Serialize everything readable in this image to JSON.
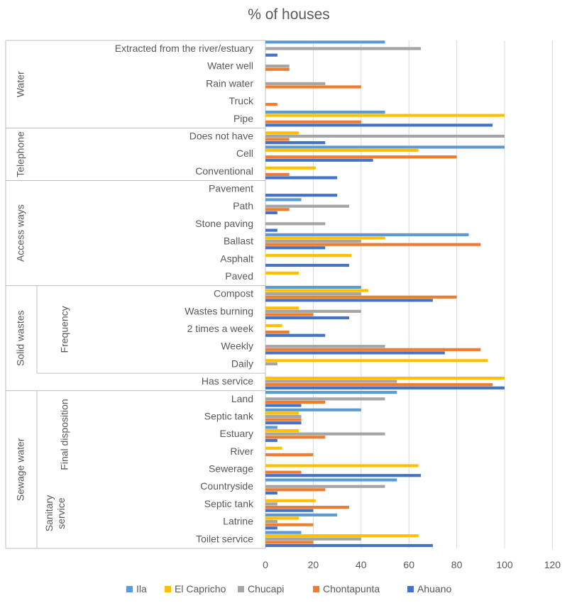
{
  "chart_data": {
    "type": "bar",
    "orientation": "horizontal",
    "title": "% of houses",
    "xlim": [
      0,
      120
    ],
    "x_ticks": [
      0,
      20,
      40,
      60,
      80,
      100,
      120
    ],
    "grid": true,
    "legend_position": "bottom",
    "series_names": [
      "Ila",
      "El Capricho",
      "Chucapi",
      "Chontapunta",
      "Ahuano"
    ],
    "colors": {
      "Ila": "#5b9bd5",
      "El Capricho": "#ffc000",
      "Chucapi": "#a5a5a5",
      "Chontapunta": "#ed7d31",
      "Ahuano": "#4472c4"
    },
    "categories": [
      {
        "label": "Extracted from the river/estuary",
        "values": [
          50,
          0,
          65,
          0,
          5
        ]
      },
      {
        "label": "Water well",
        "values": [
          0,
          0,
          10,
          10,
          0
        ]
      },
      {
        "label": "Rain water",
        "values": [
          0,
          0,
          25,
          40,
          0
        ]
      },
      {
        "label": "Truck",
        "values": [
          0,
          0,
          0,
          5,
          0
        ]
      },
      {
        "label": "Pipe",
        "values": [
          50,
          100,
          0,
          40,
          95
        ]
      },
      {
        "label": "Does not have",
        "values": [
          0,
          14,
          100,
          10,
          25
        ]
      },
      {
        "label": "Cell",
        "values": [
          100,
          64,
          0,
          80,
          45
        ]
      },
      {
        "label": "Conventional",
        "values": [
          0,
          21,
          0,
          10,
          30
        ]
      },
      {
        "label": "Pavement",
        "values": [
          0,
          0,
          0,
          0,
          30
        ]
      },
      {
        "label": "Path",
        "values": [
          15,
          0,
          35,
          10,
          5
        ]
      },
      {
        "label": "Stone paving",
        "values": [
          0,
          0,
          25,
          0,
          5
        ]
      },
      {
        "label": "Ballast",
        "values": [
          85,
          50,
          40,
          90,
          25
        ]
      },
      {
        "label": "Asphalt",
        "values": [
          0,
          36,
          0,
          0,
          35
        ]
      },
      {
        "label": "Paved",
        "values": [
          0,
          14,
          0,
          0,
          0
        ]
      },
      {
        "label": "Compost",
        "values": [
          40,
          43,
          40,
          80,
          70
        ]
      },
      {
        "label": "Wastes burning",
        "values": [
          0,
          14,
          40,
          20,
          35
        ]
      },
      {
        "label": "2 times a week",
        "values": [
          0,
          7,
          0,
          10,
          25
        ]
      },
      {
        "label": "Weekly",
        "values": [
          0,
          0,
          50,
          90,
          75
        ]
      },
      {
        "label": "Daily",
        "values": [
          0,
          93,
          5,
          0,
          0
        ]
      },
      {
        "label": "Has service",
        "values": [
          0,
          100,
          55,
          95,
          100
        ]
      },
      {
        "label": "Land",
        "values": [
          55,
          0,
          50,
          25,
          15
        ]
      },
      {
        "label": "Septic tank",
        "values": [
          40,
          14,
          15,
          15,
          15
        ]
      },
      {
        "label": "Estuary",
        "values": [
          5,
          14,
          50,
          25,
          5
        ]
      },
      {
        "label": "River",
        "values": [
          0,
          7,
          0,
          20,
          0
        ]
      },
      {
        "label": "Sewerage",
        "values": [
          0,
          64,
          0,
          15,
          65
        ]
      },
      {
        "label": "Countryside",
        "values": [
          55,
          0,
          50,
          25,
          5
        ]
      },
      {
        "label": "Septic tank",
        "values": [
          0,
          21,
          5,
          35,
          20
        ]
      },
      {
        "label": "Latrine",
        "values": [
          30,
          14,
          5,
          20,
          5
        ]
      },
      {
        "label": "Toilet service",
        "values": [
          15,
          64,
          40,
          20,
          70
        ]
      }
    ],
    "groups": [
      {
        "label": "Water",
        "first": 0,
        "last": 4
      },
      {
        "label": "Telephone",
        "first": 5,
        "last": 7
      },
      {
        "label": "Access ways",
        "first": 8,
        "last": 13
      },
      {
        "label": "Solid wastes",
        "first": 14,
        "last": 19
      },
      {
        "label": "Sewage water",
        "first": 20,
        "last": 28
      }
    ],
    "subgroups": [
      {
        "label": "Frequency",
        "first": 14,
        "last": 18
      },
      {
        "label": "Final disposition",
        "first": 20,
        "last": 24
      },
      {
        "label": "Sanitary service",
        "first": 25,
        "last": 28
      }
    ]
  }
}
